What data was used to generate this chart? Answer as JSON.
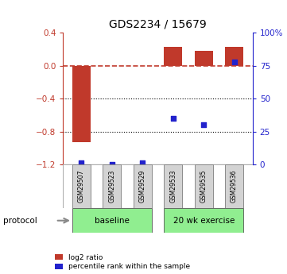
{
  "title": "GDS2234 / 15679",
  "samples": [
    "GSM29507",
    "GSM29523",
    "GSM29529",
    "GSM29533",
    "GSM29535",
    "GSM29536"
  ],
  "log2_ratio": [
    -0.93,
    0.0,
    0.0,
    0.23,
    0.18,
    0.23
  ],
  "percentile_rank": [
    1.5,
    0.0,
    1.5,
    35.0,
    30.0,
    78.0
  ],
  "ylim_left": [
    -1.2,
    0.4
  ],
  "ylim_right": [
    0,
    100
  ],
  "yticks_left": [
    -1.2,
    -0.8,
    -0.4,
    0.0,
    0.4
  ],
  "yticks_right": [
    0,
    25,
    50,
    75,
    100
  ],
  "ytick_labels_right": [
    "0",
    "25",
    "50",
    "75",
    "100%"
  ],
  "bar_color": "#c0392b",
  "scatter_color": "#2222cc",
  "dashed_line_color": "#c0392b",
  "dotted_line_color": "#000000",
  "group1_label": "baseline",
  "group2_label": "20 wk exercise",
  "group_bg_color": "#90ee90",
  "sample_box_color": "#d3d3d3",
  "legend_bar_label": "log2 ratio",
  "legend_scatter_label": "percentile rank within the sample",
  "protocol_label": "protocol"
}
